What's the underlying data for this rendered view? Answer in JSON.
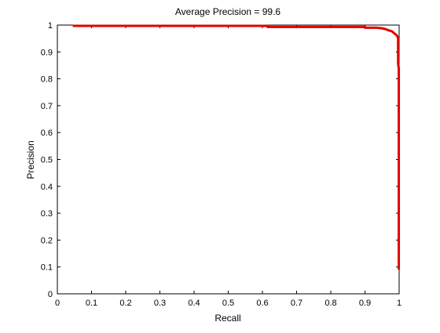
{
  "chart_data": {
    "type": "line",
    "title": "Average Precision = 99.6",
    "xlabel": "Recall",
    "ylabel": "Precision",
    "xlim": [
      0,
      1
    ],
    "ylim": [
      0,
      1
    ],
    "xticks": [
      0,
      0.1,
      0.2,
      0.3,
      0.4,
      0.5,
      0.6,
      0.7,
      0.8,
      0.9,
      1
    ],
    "xtick_labels": [
      "0",
      "0.1",
      "0.2",
      "0.3",
      "0.4",
      "0.5",
      "0.6",
      "0.7",
      "0.8",
      "0.9",
      "1"
    ],
    "yticks": [
      0,
      0.1,
      0.2,
      0.3,
      0.4,
      0.5,
      0.6,
      0.7,
      0.8,
      0.9,
      1
    ],
    "ytick_labels": [
      "0",
      "0.1",
      "0.2",
      "0.3",
      "0.4",
      "0.5",
      "0.6",
      "0.7",
      "0.8",
      "0.9",
      "1"
    ],
    "grid": false,
    "legend": "none",
    "series": [
      {
        "color": "#e00000",
        "points": [
          [
            0.045,
            0.997
          ],
          [
            0.615,
            0.997
          ],
          [
            0.615,
            0.993
          ],
          [
            0.9,
            0.993
          ],
          [
            0.9,
            0.99
          ],
          [
            0.935,
            0.99
          ],
          [
            0.95,
            0.988
          ],
          [
            0.96,
            0.985
          ],
          [
            0.97,
            0.98
          ],
          [
            0.98,
            0.976
          ],
          [
            0.985,
            0.97
          ],
          [
            0.99,
            0.965
          ],
          [
            0.994,
            0.96
          ],
          [
            0.997,
            0.95
          ],
          [
            0.997,
            0.86
          ],
          [
            0.998,
            0.845
          ],
          [
            0.999,
            0.84
          ],
          [
            0.999,
            0.7
          ],
          [
            0.999,
            0.09
          ]
        ]
      }
    ]
  }
}
